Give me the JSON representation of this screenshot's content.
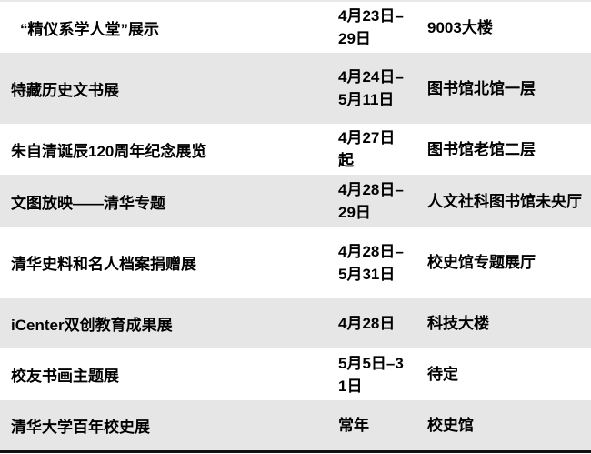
{
  "rows": [
    {
      "name": "“精仪系学人堂”展示",
      "date": "4月23日–29日",
      "location": "9003大楼"
    },
    {
      "name": "特藏历史文书展",
      "date": "4月24日–5月11日",
      "location": "图书馆北馆一层"
    },
    {
      "name": "朱自清诞辰120周年纪念展览",
      "date": "4月27日起",
      "location": "图书馆老馆二层"
    },
    {
      "name": "文图放映——清华专题",
      "date": "4月28日–29日",
      "location": "人文社科图书馆未央厅"
    },
    {
      "name": "清华史料和名人档案捐赠展",
      "date": "4月28日–5月31日",
      "location": "校史馆专题展厅"
    },
    {
      "name": "iCenter双创教育成果展",
      "date": "4月28日",
      "location": "科技大楼"
    },
    {
      "name": "校友书画主题展",
      "date": "5月5日–31日",
      "location": "待定"
    },
    {
      "name": "清华大学百年校史展",
      "date": "常年",
      "location": "校史馆"
    }
  ],
  "colors": {
    "stripe": "#e6e6e6",
    "rule": "#111111"
  }
}
